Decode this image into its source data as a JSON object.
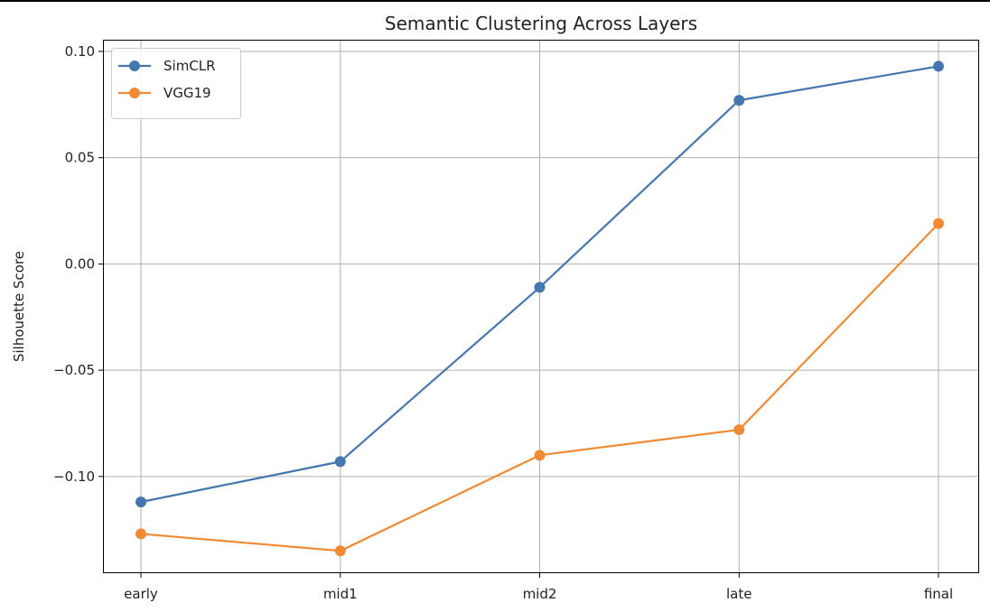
{
  "chart_data": {
    "type": "line",
    "title": "Semantic Clustering Across Layers",
    "xlabel": "",
    "ylabel": "Silhouette Score",
    "categories": [
      "early",
      "mid1",
      "mid2",
      "late",
      "final"
    ],
    "ylim": [
      -0.1455,
      0.1055
    ],
    "yticks": [
      0.1,
      0.05,
      0.0,
      -0.05,
      -0.1
    ],
    "ytick_labels": [
      "0.10",
      "0.05",
      "0.00",
      "−0.05",
      "−0.10"
    ],
    "grid": true,
    "legend_position": "top-left",
    "series": [
      {
        "name": "SimCLR",
        "color": "#4477b0",
        "values": [
          -0.112,
          -0.093,
          -0.011,
          0.077,
          0.093
        ]
      },
      {
        "name": "VGG19",
        "color": "#f08a34",
        "values": [
          -0.127,
          -0.135,
          -0.09,
          -0.078,
          0.019
        ]
      }
    ]
  }
}
